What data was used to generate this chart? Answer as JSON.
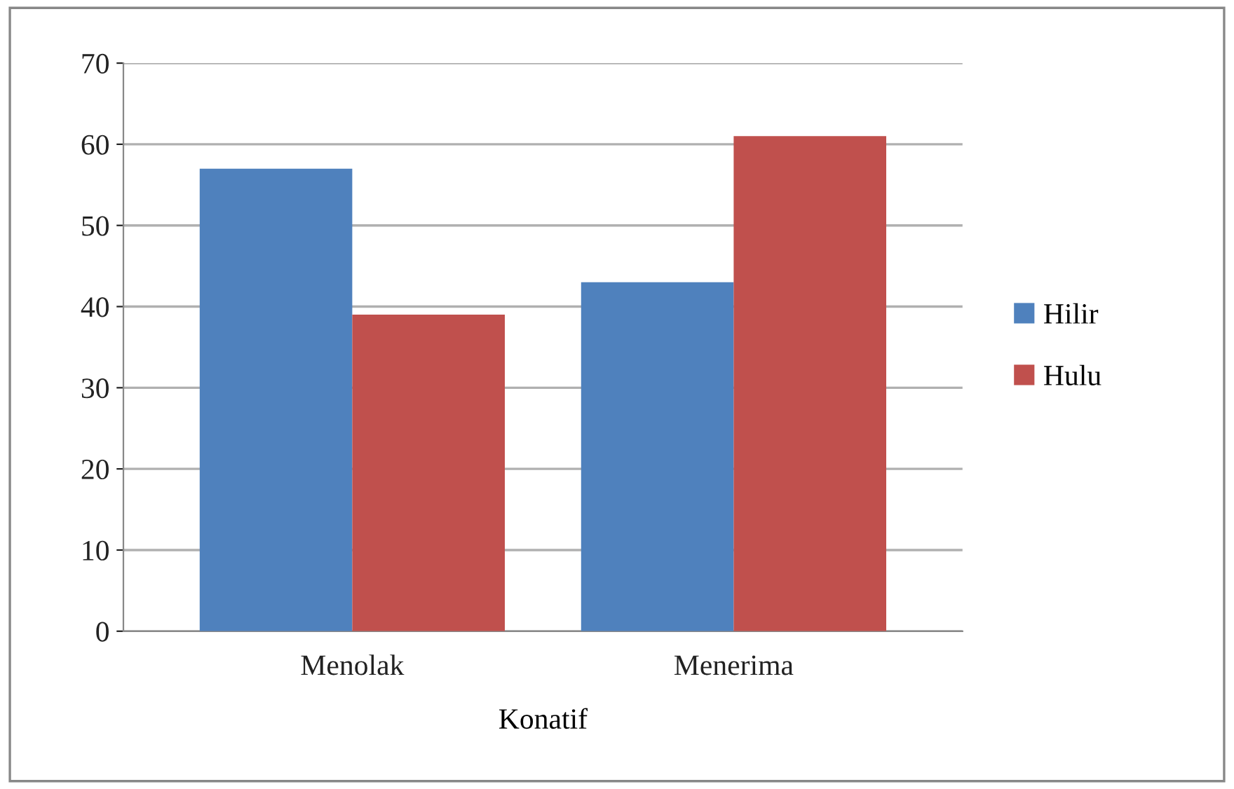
{
  "chart_data": {
    "type": "bar",
    "xlabel": "Konatif",
    "categories": [
      "Menolak",
      "Menerima"
    ],
    "series": [
      {
        "name": "Hilir",
        "color": "#4f81bd",
        "values": [
          57,
          43
        ]
      },
      {
        "name": "Hulu",
        "color": "#c0504d",
        "values": [
          39,
          61
        ]
      }
    ],
    "ylim": [
      0,
      70
    ],
    "yticks": [
      0,
      10,
      20,
      30,
      40,
      50,
      60,
      70
    ],
    "grid": "y",
    "legend": "right"
  }
}
